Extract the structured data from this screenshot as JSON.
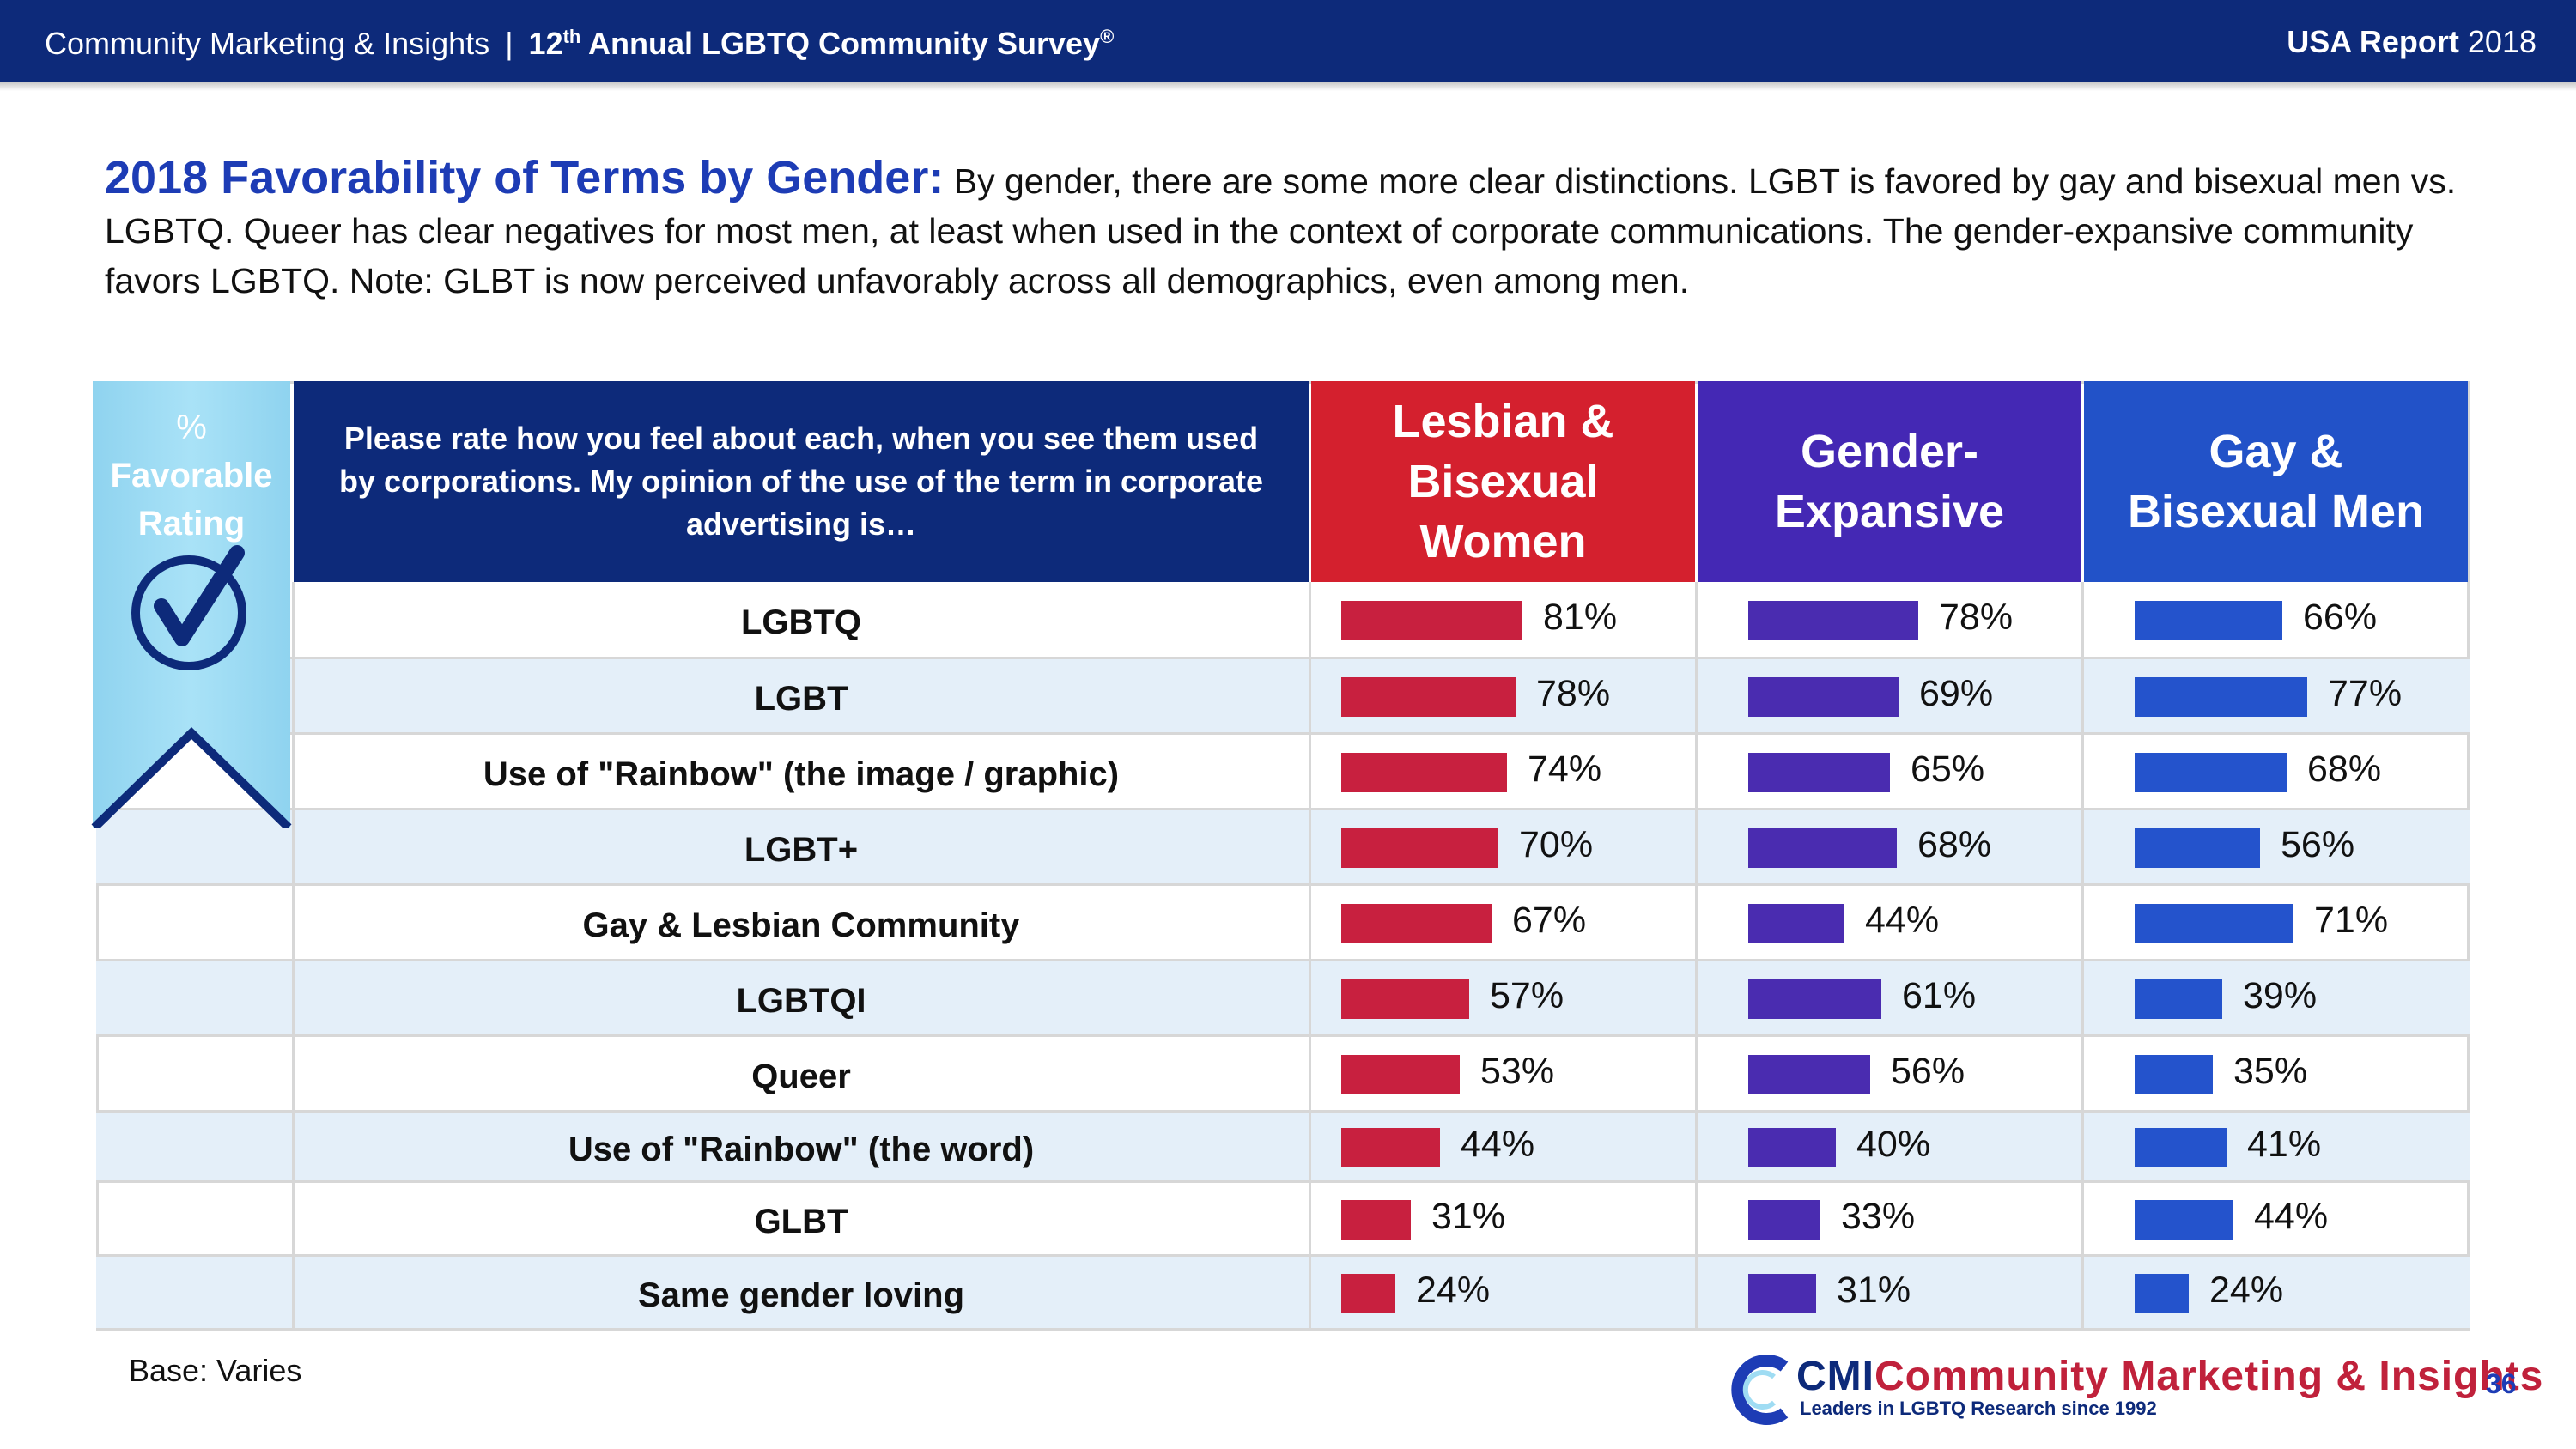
{
  "header": {
    "org": "Community Marketing & Insights",
    "separator": "|",
    "survey_prefix": "12",
    "survey_sup": "th",
    "survey_rest": " Annual LGBTQ Community Survey",
    "survey_mark": "®",
    "report_bold": "USA Report",
    "report_year": "2018"
  },
  "title": {
    "lead": "2018 Favorability of Terms by Gender:",
    "body": "By gender, there are some more clear distinctions. LGBT is favored by gay and bisexual men vs. LGBTQ. Queer has clear negatives for most men, at least when used in the context of corporate communications. The gender-expansive community favors LGBTQ. Note: GLBT is now perceived unfavorably across all demographics, even among men."
  },
  "ribbon": {
    "symbol": "%",
    "line1": "Favorable",
    "line2": "Rating",
    "icon": "checkmark-circle-icon"
  },
  "question": "Please rate how you feel about each, when you see them used by corporations.  My opinion of the use of the term in corporate advertising is…",
  "colors": {
    "header_navy": "#0d2a7a",
    "women": "#c8203f",
    "women_header": "#d4202e",
    "expansive": "#4a2cb0",
    "expansive_header": "#4428b4",
    "men": "#2453cc",
    "men_header": "#2252c8",
    "ribbon": "#9fdcf3",
    "row_shade": "#e4eff9"
  },
  "chart_data": {
    "type": "bar",
    "title": "2018 Favorability of Terms by Gender",
    "value_unit": "%",
    "ylim": [
      0,
      100
    ],
    "categories": [
      "LGBTQ",
      "LGBT",
      "Use of \"Rainbow\" (the image / graphic)",
      "LGBT+",
      "Gay & Lesbian Community",
      "LGBTQI",
      "Queer",
      "Use of \"Rainbow\" (the word)",
      "GLBT",
      "Same gender loving"
    ],
    "series": [
      {
        "name": "Lesbian & Bisexual Women",
        "header_line1": "Lesbian &",
        "header_line2": "Bisexual Women",
        "values": [
          81,
          78,
          74,
          70,
          67,
          57,
          53,
          44,
          31,
          24
        ]
      },
      {
        "name": "Gender-Expansive",
        "header_line1": "Gender-",
        "header_line2": "Expansive",
        "values": [
          78,
          69,
          65,
          68,
          44,
          61,
          56,
          40,
          33,
          31
        ]
      },
      {
        "name": "Gay & Bisexual Men",
        "header_line1": "Gay &",
        "header_line2": "Bisexual Men",
        "values": [
          66,
          77,
          68,
          56,
          71,
          39,
          35,
          41,
          44,
          24
        ]
      }
    ]
  },
  "footer": {
    "base": "Base: Varies",
    "logo_cmi": "CMI",
    "logo_name": "Community Marketing & Insights",
    "logo_tagline": "Leaders in LGBTQ Research since 1992",
    "page": "36"
  }
}
